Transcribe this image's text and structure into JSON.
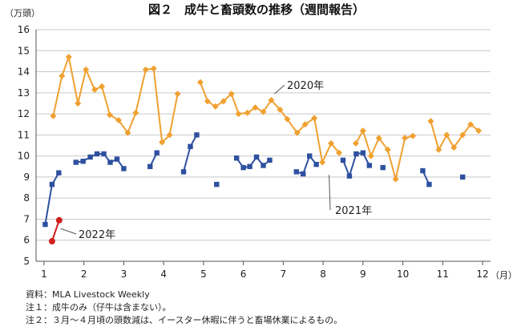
{
  "chart_data": {
    "type": "line",
    "title": "図２　成牛と畜頭数の推移（週間報告）",
    "y_unit": "（万頭）",
    "x_unit": "（月）",
    "ylim": [
      5,
      16
    ],
    "xlim": [
      0.8,
      12.2
    ],
    "grid": "horizontal",
    "y_ticks": [
      "5",
      "6",
      "7",
      "8",
      "9",
      "10",
      "11",
      "12",
      "13",
      "14",
      "15",
      "16"
    ],
    "x_ticks": [
      "1",
      "2",
      "3",
      "4",
      "5",
      "6",
      "7",
      "8",
      "9",
      "10",
      "11",
      "12"
    ],
    "series": [
      {
        "name": "2020年",
        "color": "#F0A030",
        "marker": "diamond",
        "points": [
          [
            1.23,
            11.9
          ],
          [
            1.45,
            13.8
          ],
          [
            1.62,
            14.7
          ],
          [
            1.85,
            12.5
          ],
          [
            2.05,
            14.1
          ],
          [
            2.27,
            13.15
          ],
          [
            2.45,
            13.3
          ],
          [
            2.65,
            11.95
          ],
          [
            2.87,
            11.7
          ],
          [
            3.1,
            11.1
          ],
          [
            3.3,
            12.05
          ],
          [
            3.55,
            14.1
          ],
          [
            3.75,
            14.15
          ],
          [
            3.96,
            10.65
          ],
          [
            4.15,
            11.0
          ],
          [
            4.35,
            12.95
          ],
          [
            null,
            null
          ],
          [
            4.92,
            13.5
          ],
          [
            5.1,
            12.6
          ],
          [
            5.3,
            12.35
          ],
          [
            5.5,
            12.6
          ],
          [
            5.7,
            12.95
          ],
          [
            5.88,
            12.0
          ],
          [
            6.1,
            12.05
          ],
          [
            6.3,
            12.3
          ],
          [
            6.5,
            12.1
          ],
          [
            6.7,
            12.65
          ],
          [
            6.92,
            12.2
          ],
          [
            7.1,
            11.75
          ],
          [
            7.35,
            11.1
          ],
          [
            7.55,
            11.5
          ],
          [
            7.78,
            11.8
          ],
          [
            7.98,
            9.7
          ],
          [
            8.2,
            10.6
          ],
          [
            8.4,
            10.15
          ],
          [
            null,
            null
          ],
          [
            8.82,
            10.6
          ],
          [
            9.0,
            11.2
          ],
          [
            9.2,
            10.0
          ],
          [
            9.4,
            10.85
          ],
          [
            9.62,
            10.3
          ],
          [
            9.82,
            8.9
          ],
          [
            10.05,
            10.85
          ],
          [
            10.25,
            10.95
          ],
          [
            null,
            null
          ],
          [
            10.7,
            11.65
          ],
          [
            10.9,
            10.3
          ],
          [
            11.1,
            11.0
          ],
          [
            11.28,
            10.4
          ],
          [
            11.5,
            11.0
          ],
          [
            11.7,
            11.5
          ],
          [
            11.9,
            11.2
          ]
        ]
      },
      {
        "name": "2021年",
        "color": "#2E50A0",
        "marker": "square",
        "points": [
          [
            1.03,
            6.75
          ],
          [
            1.2,
            8.65
          ],
          [
            1.37,
            9.2
          ],
          [
            null,
            null
          ],
          [
            1.8,
            9.7
          ],
          [
            1.98,
            9.75
          ],
          [
            2.16,
            9.95
          ],
          [
            2.33,
            10.1
          ],
          [
            2.5,
            10.1
          ],
          [
            2.66,
            9.7
          ],
          [
            2.83,
            9.85
          ],
          [
            3.0,
            9.4
          ],
          [
            null,
            null
          ],
          [
            3.66,
            9.5
          ],
          [
            3.83,
            10.15
          ],
          [
            null,
            null
          ],
          [
            4.5,
            9.25
          ],
          [
            4.67,
            10.45
          ],
          [
            4.83,
            11.0
          ],
          [
            null,
            null
          ],
          [
            5.33,
            8.65
          ],
          [
            null,
            null
          ],
          [
            5.83,
            9.9
          ],
          [
            6.0,
            9.45
          ],
          [
            6.16,
            9.5
          ],
          [
            6.33,
            9.95
          ],
          [
            6.5,
            9.55
          ],
          [
            6.66,
            9.8
          ],
          [
            null,
            null
          ],
          [
            7.33,
            9.25
          ],
          [
            7.5,
            9.15
          ],
          [
            7.66,
            10.0
          ],
          [
            7.83,
            9.6
          ],
          [
            null,
            null
          ],
          [
            8.5,
            9.8
          ],
          [
            8.66,
            9.05
          ],
          [
            8.83,
            10.1
          ],
          [
            9.0,
            10.15
          ],
          [
            9.16,
            9.55
          ],
          [
            null,
            null
          ],
          [
            9.5,
            9.45
          ],
          [
            null,
            null
          ],
          [
            10.5,
            9.3
          ],
          [
            10.66,
            8.65
          ],
          [
            null,
            null
          ],
          [
            11.5,
            9.0
          ]
        ]
      },
      {
        "name": "2022年",
        "color": "#D0201C",
        "marker": "circle",
        "points": [
          [
            1.2,
            5.95
          ],
          [
            1.38,
            6.95
          ]
        ]
      }
    ],
    "annotations": [
      {
        "text": "2020年",
        "series": 0
      },
      {
        "text": "2021年",
        "series": 1
      },
      {
        "text": "2022年",
        "series": 2
      }
    ]
  },
  "notes": [
    "資料：MLA Livestock Weekly",
    "注１：成牛のみ（仔牛は含まない）。",
    "注２：３月～４月頃の頭数減は、イースター休暇に伴うと畜場休業によるもの。"
  ]
}
